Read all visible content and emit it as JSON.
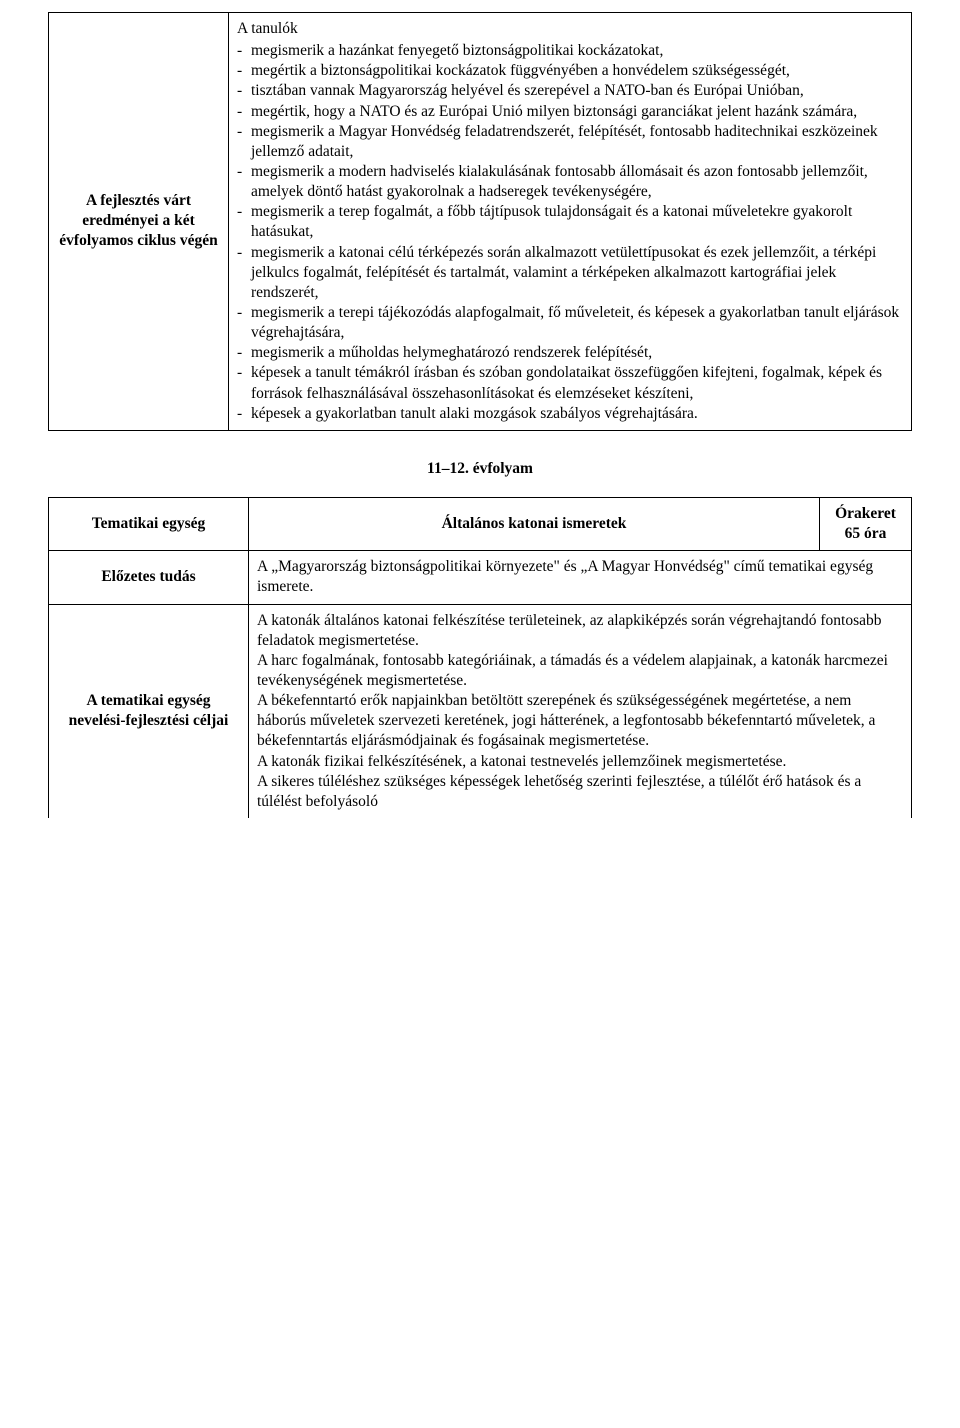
{
  "table1": {
    "label": "A fejlesztés várt eredményei a két évfolyamos ciklus végén",
    "intro": "A tanulók",
    "bullets": [
      "megismerik a hazánkat fenyegető biztonságpolitikai kockázatokat,",
      "megértik a biztonságpolitikai kockázatok függvényében a honvédelem szükségességét,",
      "tisztában vannak Magyarország helyével és szerepével a NATO-ban és Európai Unióban,",
      "megértik, hogy a NATO és az Európai Unió milyen biztonsági garanciákat jelent hazánk számára,",
      "megismerik a Magyar Honvédség feladatrendszerét, felépítését, fontosabb haditechnikai eszközeinek jellemző adatait,",
      "megismerik a modern hadviselés kialakulásának fontosabb állomásait és azon fontosabb jellemzőit, amelyek döntő hatást gyakorolnak a hadseregek tevékenységére,",
      "megismerik a terep fogalmát, a főbb tájtípusok tulajdonságait és a katonai műveletekre gyakorolt hatásukat,",
      "megismerik a katonai célú térképezés során alkalmazott vetülettípusokat és ezek jellemzőit, a térképi jelkulcs fogalmát, felépítését és tartalmát, valamint a térképeken alkalmazott kartográfiai jelek rendszerét,",
      "megismerik a terepi tájékozódás alapfogalmait, fő műveleteit, és képesek a gyakorlatban tanult eljárások végrehajtására,",
      "megismerik a műholdas helymeghatározó rendszerek felépítését,",
      "képesek a tanult témákról írásban és szóban gondolataikat összefüggően kifejteni, fogalmak, képek és források felhasználásával összehasonlításokat és elemzéseket készíteni,",
      "képesek a gyakorlatban tanult alaki mozgások szabályos végrehajtására."
    ]
  },
  "sectionTitle": "11–12. évfolyam",
  "table2": {
    "row1": {
      "col1": "Tematikai egység",
      "col2": "Általános katonai ismeretek",
      "col3a": "Órakeret",
      "col3b": "65 óra"
    },
    "row2": {
      "label": "Előzetes tudás",
      "text": "A „Magyarország biztonságpolitikai környezete\" és „A Magyar Honvédség\" című tematikai egység ismerete."
    },
    "row3": {
      "label": "A tematikai egység nevelési-fejlesztési céljai",
      "paras": [
        "A katonák általános katonai felkészítése területeinek, az alapkiképzés során végrehajtandó fontosabb feladatok megismertetése.",
        "A harc fogalmának, fontosabb kategóriáinak, a támadás és a védelem alapjainak, a katonák harcmezei tevékenységének megismertetése.",
        "A békefenntartó erők napjainkban betöltött szerepének és szükségességének megértetése, a nem háborús műveletek szervezeti keretének, jogi hátterének, a legfontosabb békefenntartó műveletek, a békefenntartás eljárásmódjainak és fogásainak megismertetése.",
        "A katonák fizikai felkészítésének, a katonai testnevelés jellemzőinek megismertetése.",
        "A sikeres túléléshez szükséges képességek lehetőség szerinti fejlesztése, a túlélőt érő hatások és a túlélést befolyásoló"
      ]
    }
  }
}
